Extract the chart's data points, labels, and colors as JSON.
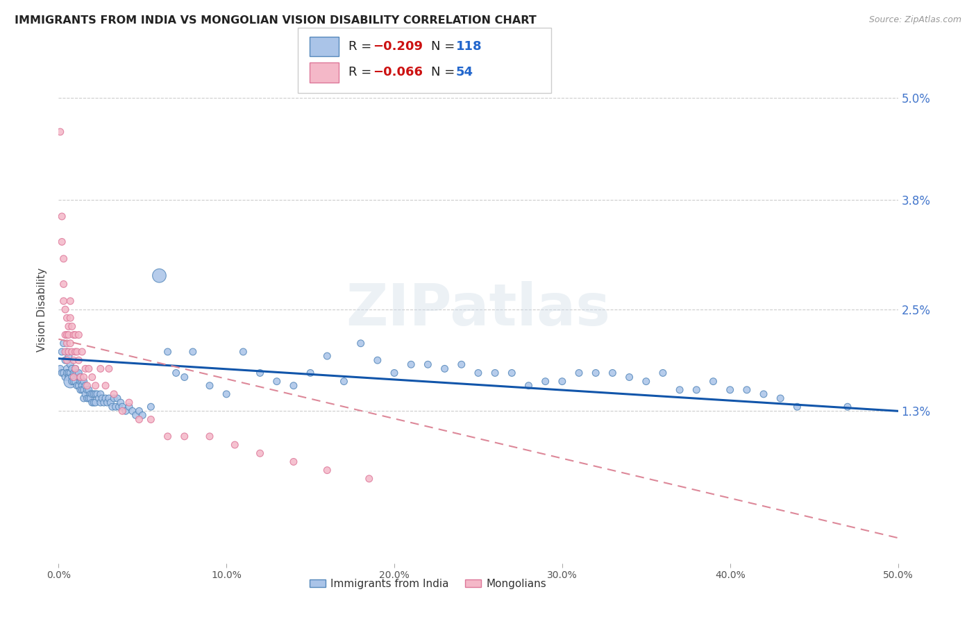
{
  "title": "IMMIGRANTS FROM INDIA VS MONGOLIAN VISION DISABILITY CORRELATION CHART",
  "source": "Source: ZipAtlas.com",
  "ylabel": "Vision Disability",
  "xlim": [
    0.0,
    0.5
  ],
  "ylim": [
    -0.005,
    0.055
  ],
  "yticks": [
    0.013,
    0.025,
    0.038,
    0.05
  ],
  "ytick_labels": [
    "1.3%",
    "2.5%",
    "3.8%",
    "5.0%"
  ],
  "xticks": [
    0.0,
    0.1,
    0.2,
    0.3,
    0.4,
    0.5
  ],
  "xtick_labels": [
    "0.0%",
    "10.0%",
    "20.0%",
    "30.0%",
    "40.0%",
    "50.0%"
  ],
  "blue_color": "#aac4e8",
  "pink_color": "#f4b8c8",
  "blue_edge": "#5588bb",
  "pink_edge": "#dd7799",
  "trend_blue": "#1155aa",
  "trend_pink": "#dd8899",
  "legend_blue_R": "R = -0.209",
  "legend_blue_N": "N = 118",
  "legend_pink_R": "R = -0.066",
  "legend_pink_N": "N = 54",
  "legend_label_blue": "Immigrants from India",
  "legend_label_pink": "Mongolians",
  "watermark": "ZIPatlas",
  "blue_x": [
    0.001,
    0.002,
    0.002,
    0.003,
    0.003,
    0.004,
    0.004,
    0.005,
    0.005,
    0.005,
    0.006,
    0.006,
    0.006,
    0.007,
    0.007,
    0.007,
    0.008,
    0.008,
    0.008,
    0.009,
    0.009,
    0.01,
    0.01,
    0.01,
    0.011,
    0.011,
    0.012,
    0.012,
    0.012,
    0.013,
    0.013,
    0.013,
    0.014,
    0.014,
    0.014,
    0.015,
    0.015,
    0.015,
    0.016,
    0.016,
    0.017,
    0.017,
    0.018,
    0.018,
    0.019,
    0.019,
    0.02,
    0.02,
    0.021,
    0.021,
    0.022,
    0.022,
    0.023,
    0.024,
    0.025,
    0.025,
    0.026,
    0.027,
    0.028,
    0.029,
    0.03,
    0.031,
    0.032,
    0.033,
    0.034,
    0.035,
    0.036,
    0.037,
    0.038,
    0.04,
    0.042,
    0.044,
    0.046,
    0.048,
    0.05,
    0.055,
    0.06,
    0.065,
    0.07,
    0.075,
    0.08,
    0.09,
    0.1,
    0.11,
    0.12,
    0.13,
    0.14,
    0.15,
    0.16,
    0.17,
    0.18,
    0.19,
    0.2,
    0.21,
    0.22,
    0.23,
    0.24,
    0.25,
    0.26,
    0.27,
    0.28,
    0.29,
    0.3,
    0.31,
    0.32,
    0.33,
    0.34,
    0.35,
    0.36,
    0.37,
    0.38,
    0.39,
    0.4,
    0.41,
    0.42,
    0.43,
    0.44,
    0.47
  ],
  "blue_y": [
    0.018,
    0.02,
    0.0175,
    0.021,
    0.0175,
    0.019,
    0.017,
    0.02,
    0.018,
    0.0175,
    0.0195,
    0.0175,
    0.017,
    0.0185,
    0.0175,
    0.0165,
    0.018,
    0.017,
    0.0165,
    0.0175,
    0.0165,
    0.0175,
    0.0165,
    0.018,
    0.0175,
    0.016,
    0.017,
    0.016,
    0.0175,
    0.0165,
    0.017,
    0.0155,
    0.0165,
    0.016,
    0.0155,
    0.0165,
    0.0155,
    0.0145,
    0.016,
    0.015,
    0.0155,
    0.0145,
    0.0155,
    0.0145,
    0.015,
    0.0145,
    0.015,
    0.014,
    0.015,
    0.014,
    0.015,
    0.014,
    0.015,
    0.0145,
    0.015,
    0.014,
    0.0145,
    0.014,
    0.0145,
    0.014,
    0.0145,
    0.014,
    0.0135,
    0.0145,
    0.0135,
    0.0145,
    0.0135,
    0.014,
    0.0135,
    0.013,
    0.0135,
    0.013,
    0.0125,
    0.013,
    0.0125,
    0.0135,
    0.029,
    0.02,
    0.0175,
    0.017,
    0.02,
    0.016,
    0.015,
    0.02,
    0.0175,
    0.0165,
    0.016,
    0.0175,
    0.0195,
    0.0165,
    0.021,
    0.019,
    0.0175,
    0.0185,
    0.0185,
    0.018,
    0.0185,
    0.0175,
    0.0175,
    0.0175,
    0.016,
    0.0165,
    0.0165,
    0.0175,
    0.0175,
    0.0175,
    0.017,
    0.0165,
    0.0175,
    0.0155,
    0.0155,
    0.0165,
    0.0155,
    0.0155,
    0.015,
    0.0145,
    0.0135,
    0.0135
  ],
  "blue_sizes": [
    50,
    50,
    50,
    50,
    50,
    50,
    50,
    50,
    50,
    50,
    50,
    50,
    50,
    50,
    50,
    180,
    50,
    50,
    50,
    50,
    50,
    50,
    50,
    50,
    50,
    50,
    50,
    50,
    50,
    50,
    50,
    50,
    50,
    50,
    50,
    50,
    50,
    50,
    50,
    50,
    50,
    50,
    50,
    50,
    50,
    50,
    50,
    50,
    50,
    50,
    50,
    50,
    50,
    50,
    50,
    50,
    50,
    50,
    50,
    50,
    50,
    50,
    50,
    50,
    50,
    50,
    50,
    50,
    50,
    50,
    50,
    50,
    50,
    50,
    50,
    50,
    200,
    50,
    50,
    50,
    50,
    50,
    50,
    50,
    50,
    50,
    50,
    50,
    50,
    50,
    50,
    50,
    50,
    50,
    50,
    50,
    50,
    50,
    50,
    50,
    50,
    50,
    50,
    50,
    50,
    50,
    50,
    50,
    50,
    50,
    50,
    50,
    50,
    50,
    50,
    50,
    50,
    50
  ],
  "pink_x": [
    0.001,
    0.002,
    0.002,
    0.003,
    0.003,
    0.003,
    0.004,
    0.004,
    0.004,
    0.005,
    0.005,
    0.005,
    0.005,
    0.006,
    0.006,
    0.006,
    0.007,
    0.007,
    0.007,
    0.008,
    0.008,
    0.009,
    0.009,
    0.009,
    0.01,
    0.01,
    0.01,
    0.011,
    0.012,
    0.012,
    0.013,
    0.014,
    0.015,
    0.016,
    0.017,
    0.018,
    0.02,
    0.022,
    0.025,
    0.028,
    0.03,
    0.033,
    0.038,
    0.042,
    0.048,
    0.055,
    0.065,
    0.075,
    0.09,
    0.105,
    0.12,
    0.14,
    0.16,
    0.185
  ],
  "pink_y": [
    0.046,
    0.036,
    0.033,
    0.031,
    0.028,
    0.026,
    0.025,
    0.022,
    0.02,
    0.024,
    0.021,
    0.019,
    0.022,
    0.023,
    0.02,
    0.022,
    0.026,
    0.024,
    0.021,
    0.023,
    0.02,
    0.022,
    0.019,
    0.017,
    0.022,
    0.02,
    0.018,
    0.02,
    0.022,
    0.019,
    0.017,
    0.02,
    0.017,
    0.018,
    0.016,
    0.018,
    0.017,
    0.016,
    0.018,
    0.016,
    0.018,
    0.015,
    0.013,
    0.014,
    0.012,
    0.012,
    0.01,
    0.01,
    0.01,
    0.009,
    0.008,
    0.007,
    0.006,
    0.005
  ],
  "pink_sizes": [
    50,
    50,
    50,
    50,
    50,
    50,
    50,
    50,
    50,
    50,
    50,
    50,
    50,
    50,
    50,
    50,
    50,
    50,
    50,
    50,
    50,
    50,
    50,
    50,
    50,
    50,
    50,
    50,
    50,
    50,
    50,
    50,
    50,
    50,
    50,
    50,
    50,
    50,
    50,
    50,
    50,
    50,
    50,
    50,
    50,
    50,
    50,
    50,
    50,
    50,
    50,
    50,
    50,
    50
  ]
}
